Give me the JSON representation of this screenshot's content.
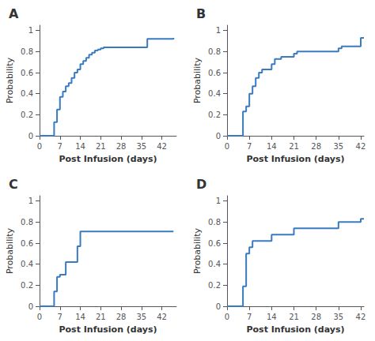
{
  "chart_data": [
    {
      "type": "step",
      "title": "A",
      "color": "#3a7abf",
      "xlabel": "Post Infusion (days)",
      "ylabel": "Probability",
      "x": [
        0,
        5,
        6,
        7,
        8,
        9,
        10,
        11,
        12,
        13,
        14,
        15,
        16,
        17,
        18,
        19,
        20,
        21,
        22,
        36,
        37,
        42,
        46
      ],
      "values": [
        0,
        0.13,
        0.25,
        0.37,
        0.42,
        0.47,
        0.5,
        0.55,
        0.6,
        0.63,
        0.68,
        0.71,
        0.74,
        0.77,
        0.79,
        0.81,
        0.82,
        0.83,
        0.84,
        0.84,
        0.92,
        0.92,
        0.93
      ],
      "xlim": [
        0,
        47
      ],
      "ylim": [
        0,
        1.05
      ],
      "xticks": [
        0,
        7,
        14,
        21,
        28,
        35,
        42
      ],
      "yticks": [
        0,
        0.2,
        0.4,
        0.6,
        0.8,
        1
      ],
      "grid": false
    },
    {
      "type": "step",
      "title": "B",
      "color": "#3a7abf",
      "xlabel": "Post Infusion (days)",
      "ylabel": "Probability",
      "x": [
        0,
        5,
        6,
        7,
        8,
        9,
        10,
        11,
        14,
        15,
        17,
        21,
        22,
        35,
        36,
        42,
        43
      ],
      "values": [
        0,
        0.23,
        0.28,
        0.4,
        0.47,
        0.55,
        0.6,
        0.63,
        0.68,
        0.73,
        0.75,
        0.78,
        0.8,
        0.83,
        0.85,
        0.93,
        0.93
      ],
      "xlim": [
        0,
        43
      ],
      "ylim": [
        0,
        1.05
      ],
      "xticks": [
        0,
        7,
        14,
        21,
        28,
        35,
        42
      ],
      "yticks": [
        0,
        0.2,
        0.4,
        0.6,
        0.8,
        1
      ],
      "grid": false
    },
    {
      "type": "step",
      "title": "C",
      "color": "#3a7abf",
      "xlabel": "Post Infusion (days)",
      "ylabel": "Probability",
      "x": [
        0,
        5,
        6,
        7,
        9,
        13,
        14,
        15,
        21,
        46
      ],
      "values": [
        0,
        0.14,
        0.28,
        0.3,
        0.42,
        0.57,
        0.71,
        0.71,
        0.71,
        0.71
      ],
      "xlim": [
        0,
        47
      ],
      "ylim": [
        0,
        1.05
      ],
      "xticks": [
        0,
        7,
        14,
        21,
        28,
        35,
        42
      ],
      "yticks": [
        0,
        0.2,
        0.4,
        0.6,
        0.8,
        1
      ],
      "grid": false
    },
    {
      "type": "step",
      "title": "D",
      "color": "#3a7abf",
      "xlabel": "Post Infusion (days)",
      "ylabel": "Probability",
      "x": [
        0,
        5,
        6,
        7,
        8,
        14,
        21,
        28,
        35,
        42,
        43
      ],
      "values": [
        0,
        0.19,
        0.5,
        0.56,
        0.62,
        0.68,
        0.74,
        0.74,
        0.8,
        0.83,
        0.83
      ],
      "xlim": [
        0,
        43
      ],
      "ylim": [
        0,
        1.05
      ],
      "xticks": [
        0,
        7,
        14,
        21,
        28,
        35,
        42
      ],
      "yticks": [
        0,
        0.2,
        0.4,
        0.6,
        0.8,
        1
      ],
      "grid": false
    }
  ]
}
